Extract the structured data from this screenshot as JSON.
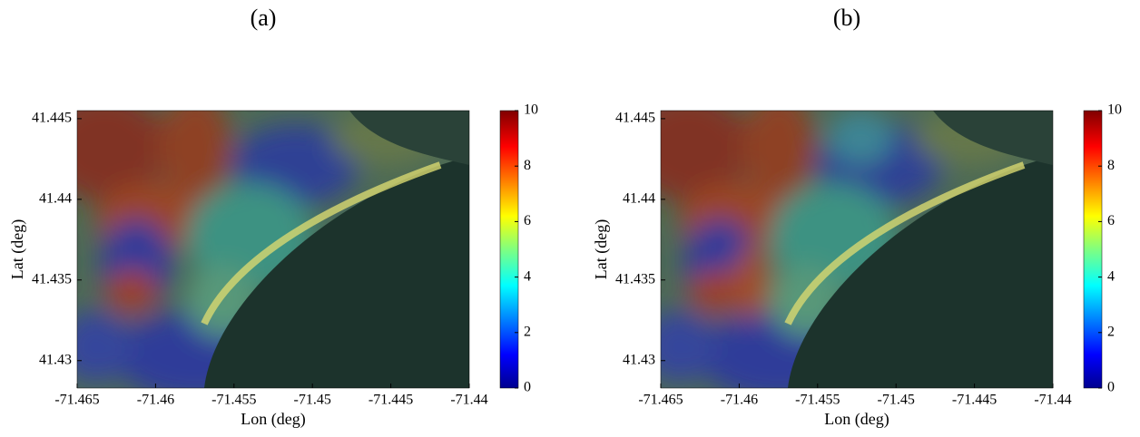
{
  "chart_data": [
    {
      "type": "map",
      "panel_label": "(a)",
      "x_label": "Lon (deg)",
      "y_label": "Lat (deg)",
      "xlim": [
        -71.465,
        -71.44
      ],
      "xticks": [
        -71.465,
        -71.46,
        -71.455,
        -71.45,
        -71.445,
        -71.44
      ],
      "ylim": [
        41.4283,
        41.4455
      ],
      "yticks": [
        41.43,
        41.435,
        41.44,
        41.445
      ],
      "colorbar": {
        "lim": [
          0,
          10
        ],
        "ticks": [
          0,
          2,
          4,
          6,
          8,
          10
        ],
        "colormap": "jet"
      }
    },
    {
      "type": "map",
      "panel_label": "(b)",
      "x_label": "Lon (deg)",
      "y_label": "Lat (deg)",
      "xlim": [
        -71.465,
        -71.44
      ],
      "xticks": [
        -71.465,
        -71.46,
        -71.455,
        -71.45,
        -71.445,
        -71.44
      ],
      "ylim": [
        41.4283,
        41.4455
      ],
      "yticks": [
        41.43,
        41.435,
        41.44,
        41.445
      ],
      "colorbar": {
        "lim": [
          0,
          10
        ],
        "ticks": [
          0,
          2,
          4,
          6,
          8,
          10
        ],
        "colormap": "jet"
      }
    }
  ]
}
